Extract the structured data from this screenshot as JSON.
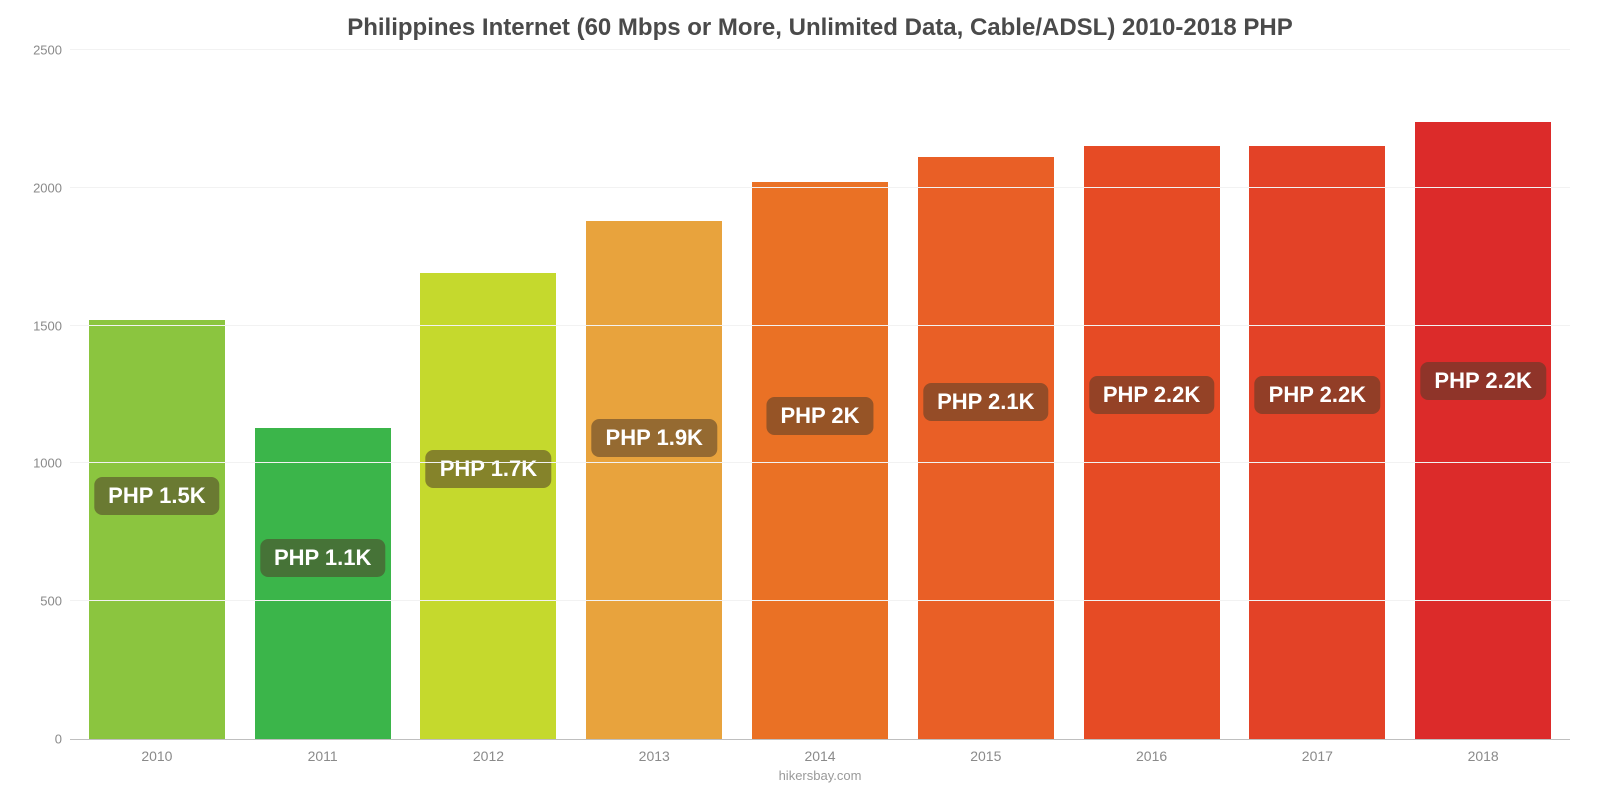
{
  "chart": {
    "type": "bar",
    "title": "Philippines Internet (60 Mbps or More, Unlimited Data, Cable/ADSL) 2010-2018 PHP",
    "title_fontsize": 24,
    "title_color": "#4a4a4a",
    "source_label": "hikersbay.com",
    "background_color": "#ffffff",
    "axis_color": "#bfbfbf",
    "tick_label_color": "#8a8a8a",
    "tick_label_fontsize": 13,
    "grid_color_top": "#f2f2f2",
    "grid_color_zero": "#bfbfbf",
    "y": {
      "min": 0,
      "max": 2500,
      "ticks": [
        0,
        500,
        1000,
        1500,
        2000,
        2500
      ]
    },
    "x_labels": [
      "2010",
      "2011",
      "2012",
      "2013",
      "2014",
      "2015",
      "2016",
      "2017",
      "2018"
    ],
    "values": [
      1520,
      1130,
      1690,
      1880,
      2020,
      2110,
      2150,
      2150,
      2240
    ],
    "value_labels": [
      "PHP 1.5K",
      "PHP 1.1K",
      "PHP 1.7K",
      "PHP 1.9K",
      "PHP 2K",
      "PHP 2.1K",
      "PHP 2.2K",
      "PHP 2.2K",
      "PHP 2.2K"
    ],
    "bar_colors": [
      "#8bc53f",
      "#3bb54a",
      "#c5d92d",
      "#e8a33d",
      "#ea7125",
      "#e95f26",
      "#e64b25",
      "#e34227",
      "#dc2b2a"
    ],
    "bar_width_pct": 82,
    "badge": {
      "bg": "rgba(80,60,40,0.55)",
      "color": "#ffffff",
      "fontsize": 22,
      "radius": 8,
      "padding": "6px 14px"
    }
  }
}
